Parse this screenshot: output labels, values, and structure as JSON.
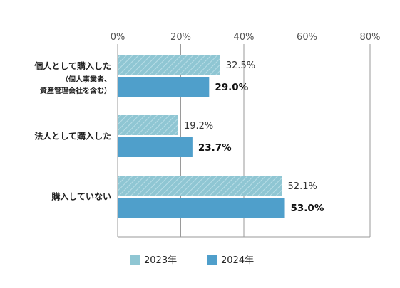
{
  "chart_data": {
    "type": "bar",
    "orientation": "horizontal",
    "title": "",
    "xlabel": "",
    "ylabel": "",
    "xlim": [
      0,
      80
    ],
    "x_ticks": [
      "0%",
      "20%",
      "40%",
      "60%",
      "80%"
    ],
    "grid": "vertical",
    "legend_position": "bottom",
    "categories": [
      {
        "label": "個人として購入した",
        "sublabels": [
          "（個人事業者、",
          "資産管理会社を含む）"
        ]
      },
      {
        "label": "法人として購入した",
        "sublabels": []
      },
      {
        "label": "購入していない",
        "sublabels": []
      }
    ],
    "series": [
      {
        "name": "2023年",
        "color": "#8fc6d3",
        "pattern": "hatched",
        "values": [
          32.5,
          19.2,
          52.1
        ],
        "labels": [
          "32.5%",
          "19.2%",
          "52.1%"
        ],
        "label_bold": false
      },
      {
        "name": "2024年",
        "color": "#4f9fcb",
        "pattern": "solid",
        "values": [
          29.0,
          23.7,
          53.0
        ],
        "labels": [
          "29.0%",
          "23.7%",
          "53.0%"
        ],
        "label_bold": true
      }
    ]
  }
}
